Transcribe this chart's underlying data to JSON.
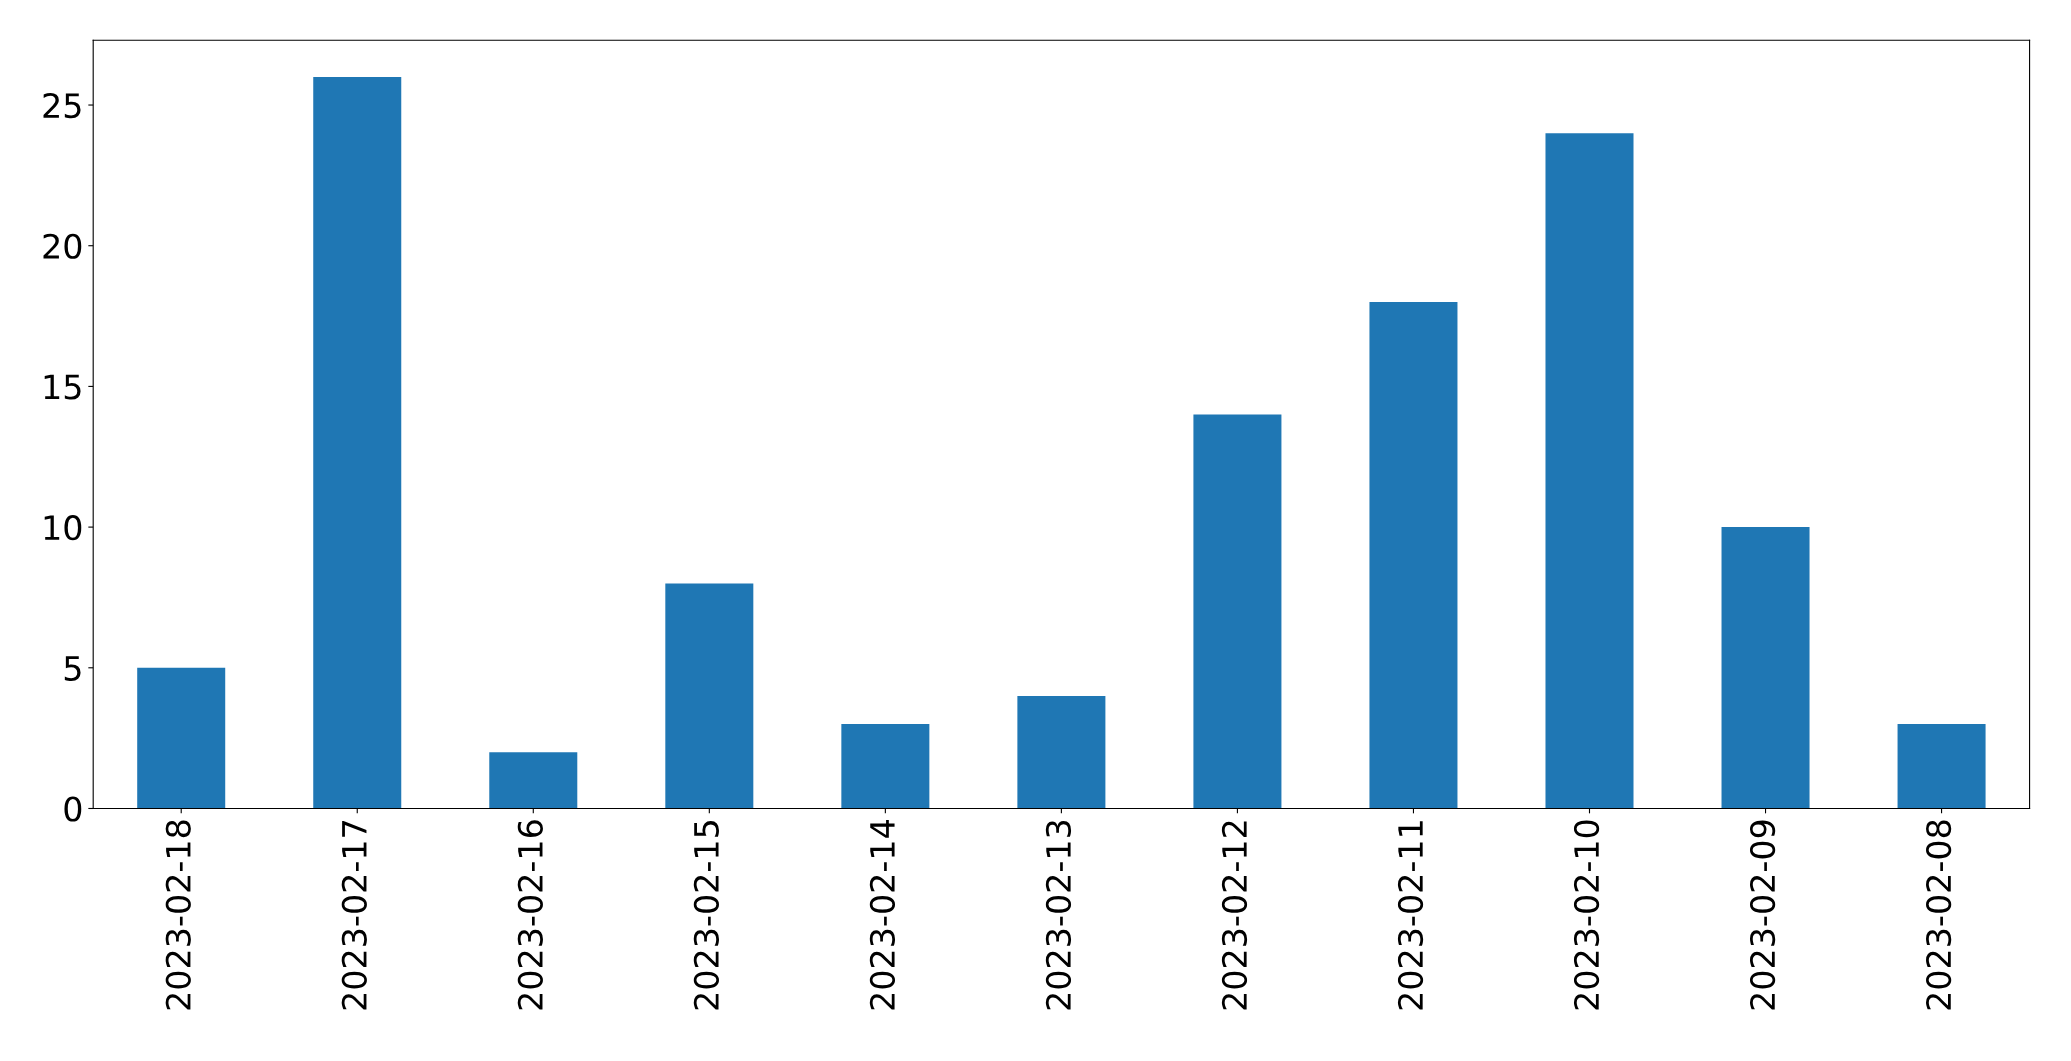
{
  "chart_data": {
    "type": "bar",
    "categories": [
      "2023-02-18",
      "2023-02-17",
      "2023-02-16",
      "2023-02-15",
      "2023-02-14",
      "2023-02-13",
      "2023-02-12",
      "2023-02-11",
      "2023-02-10",
      "2023-02-09",
      "2023-02-08"
    ],
    "values": [
      5,
      26,
      2,
      8,
      3,
      4,
      14,
      18,
      24,
      10,
      3
    ],
    "color": "#1f77b4",
    "ylim": [
      0,
      27.3
    ],
    "yticks": [
      0,
      5,
      10,
      15,
      20,
      25
    ],
    "grid": false,
    "legend": false
  }
}
